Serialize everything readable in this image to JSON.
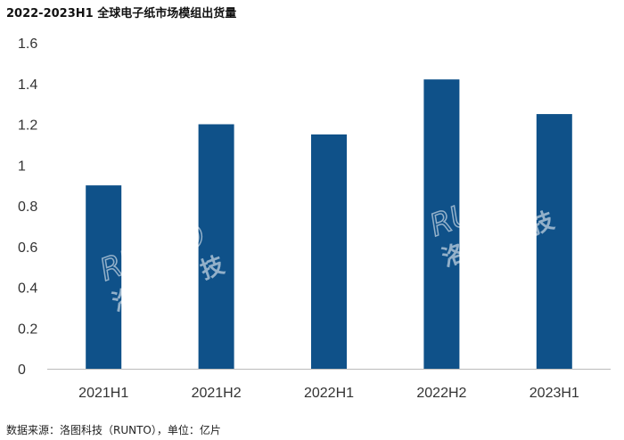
{
  "title": "2022-2023H1 全球电子纸市场模组出货量",
  "source": "数据来源：洛图科技（RUNTO），单位：亿片",
  "watermark": "RUNTO 洛图科技",
  "chart_data": {
    "type": "bar",
    "title": "2022-2023H1 全球电子纸市场模组出货量",
    "categories": [
      "2021H1",
      "2021H2",
      "2022H1",
      "2022H2",
      "2023H1"
    ],
    "values": [
      0.9,
      1.2,
      1.15,
      1.42,
      1.25
    ],
    "ylim": [
      0,
      1.6
    ],
    "yticks": [
      "0",
      "0.2",
      "0.4",
      "0.6",
      "0.8",
      "1",
      "1.2",
      "1.4",
      "1.6"
    ],
    "xlabel": "",
    "ylabel": "",
    "grid": false,
    "bar_color": "#0f5189"
  }
}
